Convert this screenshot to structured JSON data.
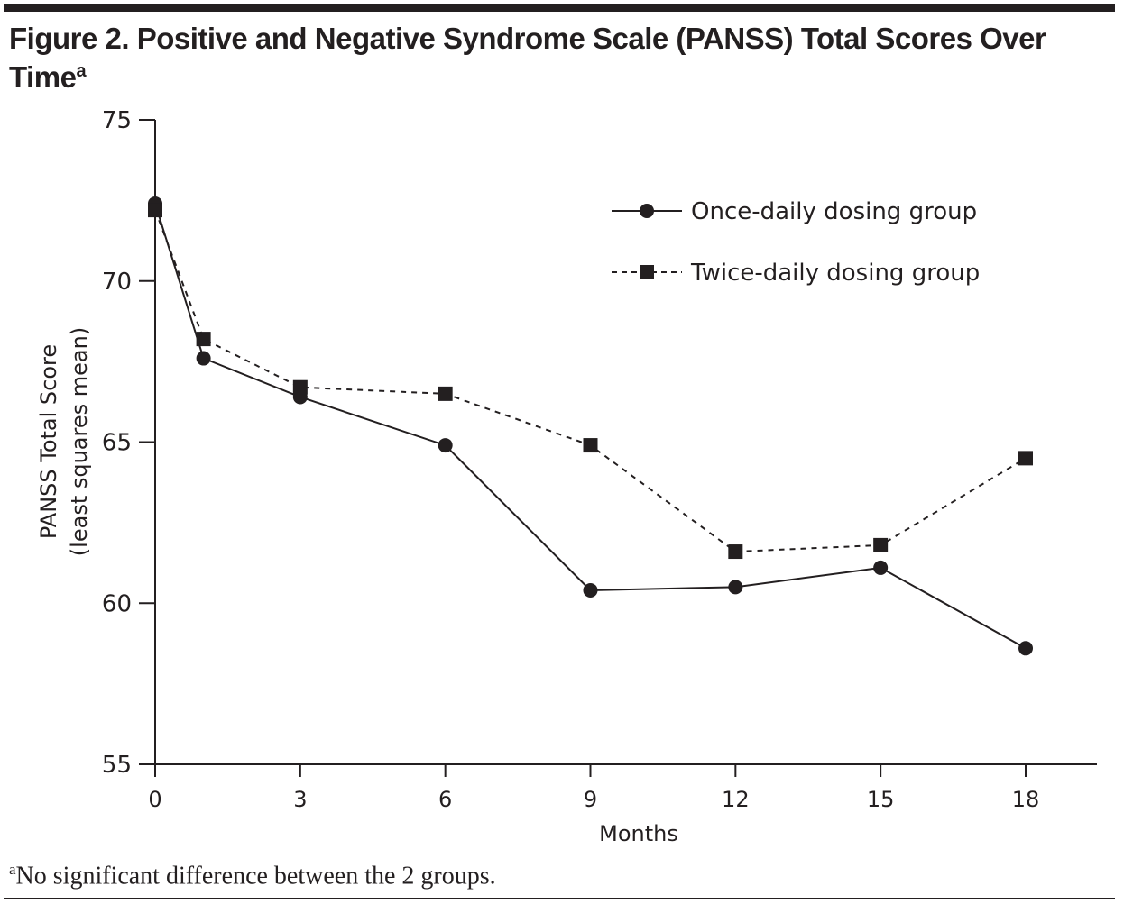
{
  "title": {
    "text": "Figure 2. Positive and Negative Syndrome Scale (PANSS) Total Scores Over Time",
    "superscript": "a"
  },
  "footnote": {
    "marker": "a",
    "text": "No significant difference between the 2 groups."
  },
  "chart_data": {
    "type": "line",
    "title": "Positive and Negative Syndrome Scale (PANSS) Total Scores Over Time",
    "xlabel": "Months",
    "ylabel": "PANSS Total Score (least squares mean)",
    "ylabel_lines": [
      "PANSS Total Score",
      "(least squares mean)"
    ],
    "x": [
      0,
      1,
      3,
      6,
      9,
      12,
      15,
      18
    ],
    "xticks": [
      0,
      3,
      6,
      9,
      12,
      15,
      18
    ],
    "yticks": [
      55,
      60,
      65,
      70,
      75
    ],
    "xlim": [
      0,
      19.5
    ],
    "ylim": [
      55,
      75
    ],
    "grid": false,
    "legend_position": "top-right",
    "series": [
      {
        "name": "Once-daily dosing group",
        "marker": "circle",
        "line": "solid",
        "values": [
          72.4,
          67.6,
          66.4,
          64.9,
          60.4,
          60.5,
          61.1,
          58.6
        ]
      },
      {
        "name": "Twice-daily dosing group",
        "marker": "square",
        "line": "dashed",
        "values": [
          72.2,
          68.2,
          66.7,
          66.5,
          64.9,
          61.6,
          61.8,
          64.5
        ]
      }
    ]
  }
}
